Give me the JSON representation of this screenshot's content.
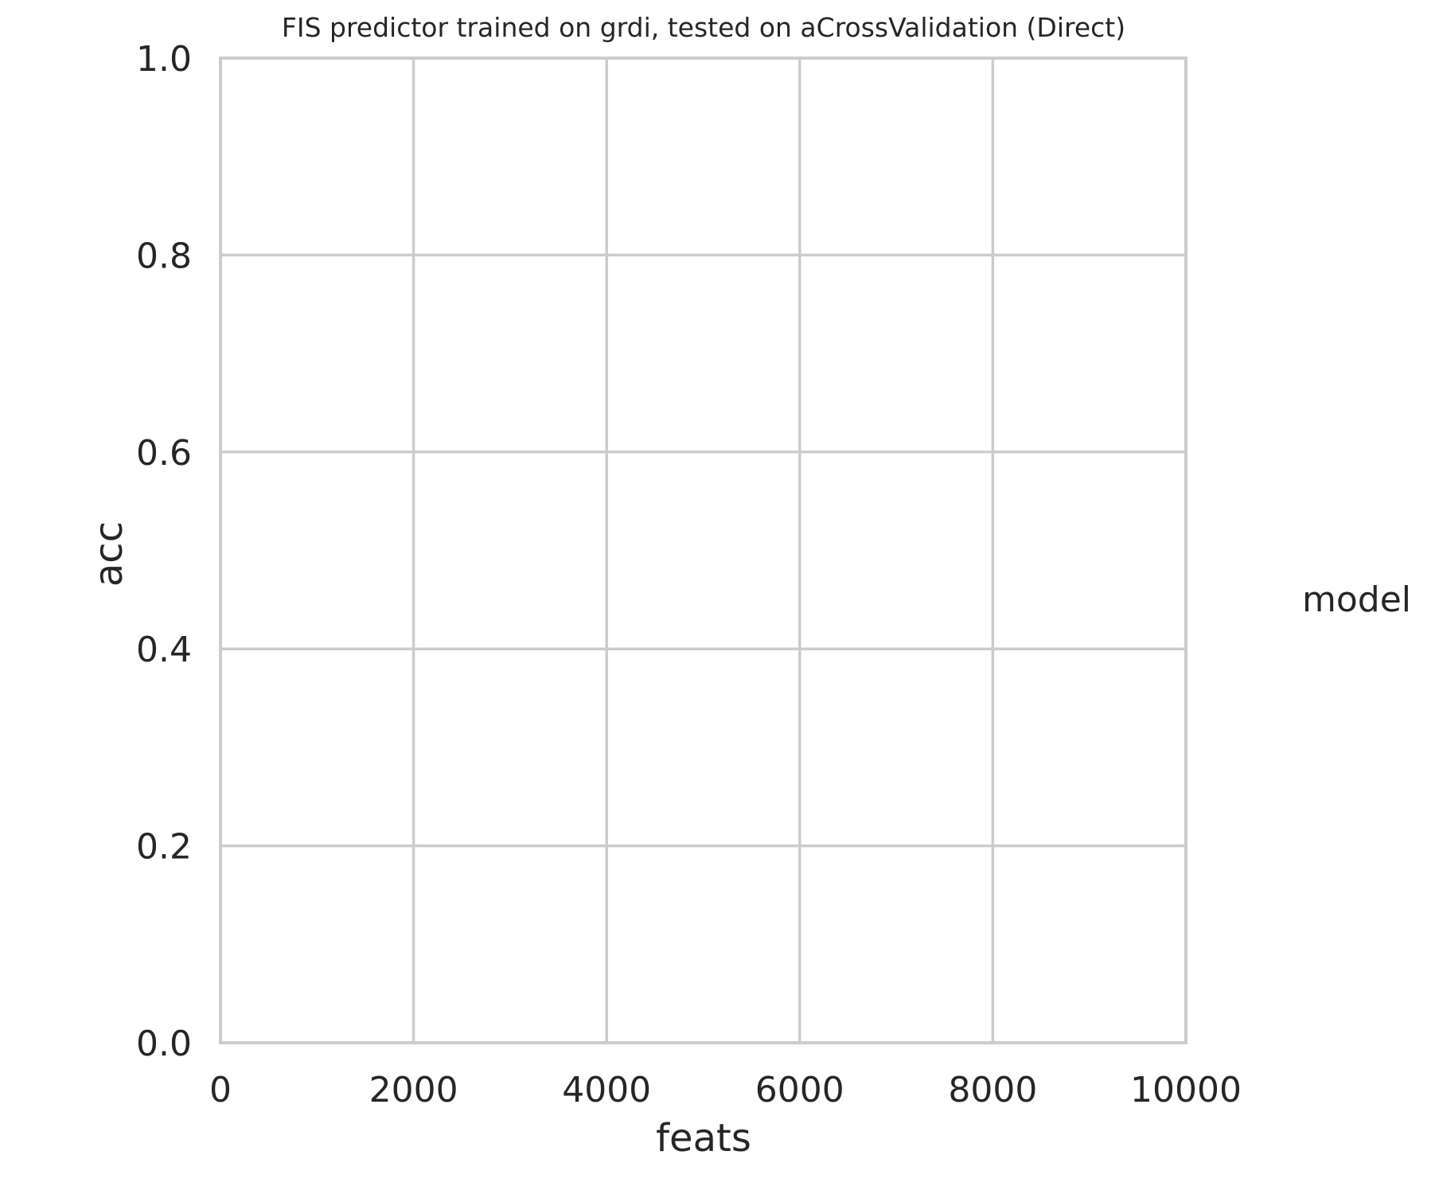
{
  "chart_data": {
    "type": "line",
    "title": "FIS predictor trained on grdi, tested on aCrossValidation (Direct)",
    "xlabel": "feats",
    "ylabel": "acc",
    "xlim": [
      0,
      10000
    ],
    "ylim": [
      0.0,
      1.0
    ],
    "xticks": [
      "0",
      "2000",
      "4000",
      "6000",
      "8000",
      "10000"
    ],
    "xtick_values": [
      0,
      2000,
      4000,
      6000,
      8000,
      10000
    ],
    "yticks": [
      "0.0",
      "0.2",
      "0.4",
      "0.6",
      "0.8",
      "1.0"
    ],
    "ytick_values": [
      0.0,
      0.2,
      0.4,
      0.6,
      0.8,
      1.0
    ],
    "grid": true,
    "legend": {
      "title": "model",
      "placement": "right",
      "entries": []
    },
    "series": []
  },
  "colors": {
    "grid": "#cccccc",
    "text": "#262626",
    "background": "#ffffff"
  }
}
